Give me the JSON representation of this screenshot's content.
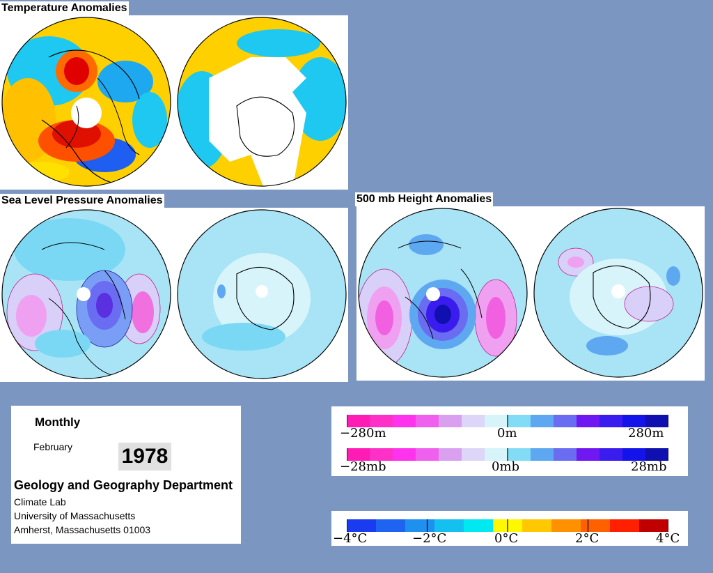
{
  "titles": {
    "temperature": "Temperature Anomalies",
    "slp": "Sea Level Pressure Anomalies",
    "height500": "500 mb Height Anomalies"
  },
  "info": {
    "period_type": "Monthly",
    "month": "February",
    "year": "1978",
    "department": "Geology and Geography Department",
    "lab": "Climate Lab",
    "university": "University of Massachusetts",
    "address": "Amherst, Massachusetts 01003"
  },
  "scales": {
    "height": {
      "left": "−280m",
      "mid": "0m",
      "right": "280m"
    },
    "pressure": {
      "left": "−28mb",
      "mid": "0mb",
      "right": "28mb"
    },
    "temperature": {
      "ticks": [
        "−4°C",
        "−2°C",
        "0°C",
        "2°C",
        "4°C"
      ]
    }
  },
  "colors": {
    "pressure_scale": [
      "#ff1cb4",
      "#ff30c8",
      "#ff33ee",
      "#f060ee",
      "#d9a0ef",
      "#ddd6f8",
      "#d8f4fb",
      "#82dcf5",
      "#5ea8f2",
      "#6a6cf1",
      "#7018f2",
      "#3a1cee",
      "#1414ea",
      "#1010b0"
    ],
    "temperature_scale": [
      "#1a3cf0",
      "#1e64f0",
      "#1e90f0",
      "#14c0f0",
      "#00e8f0",
      "#fff800",
      "#ffc800",
      "#ff9000",
      "#ff6000",
      "#ff2000",
      "#c00000"
    ],
    "background": "#7b96c0"
  }
}
